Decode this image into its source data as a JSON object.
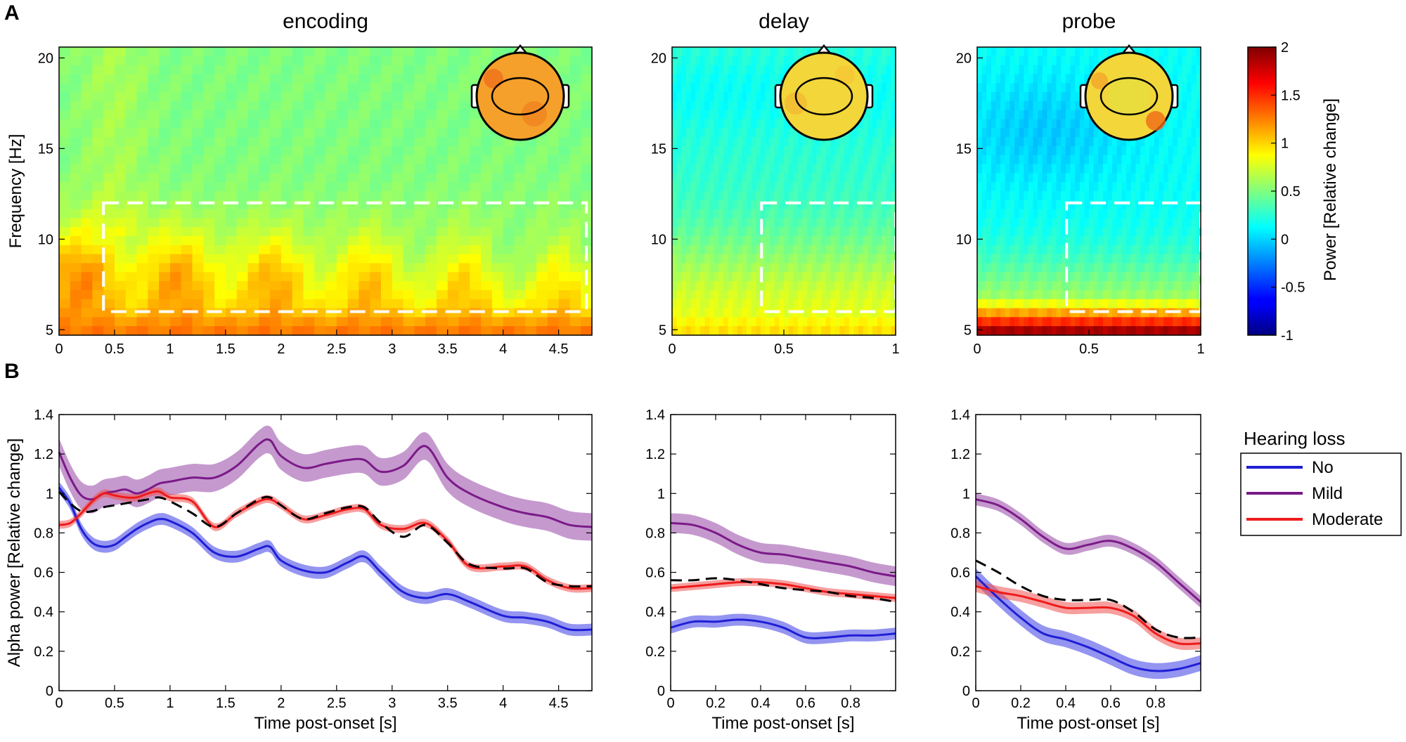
{
  "panel_labels": {
    "a": "A",
    "b": "B"
  },
  "legend": {
    "title": "Hearing loss",
    "entries": [
      {
        "label": "No",
        "color": "#1f1fd6"
      },
      {
        "label": "Mild",
        "color": "#7b1a88"
      },
      {
        "label": "Moderate",
        "color": "#ee1b1b"
      }
    ]
  },
  "colorbar": {
    "label": "Power [Relative change]",
    "ticks": [
      "2",
      "1.5",
      "1",
      "0.5",
      "0",
      "-0.5",
      "-1"
    ],
    "range": [
      -1,
      2
    ]
  },
  "chart_data": [
    {
      "type": "heatmap",
      "title": "encoding",
      "xlabel": "",
      "ylabel": "Frequency [Hz]",
      "xlim": [
        0,
        4.8
      ],
      "ylim": [
        4.7,
        20.6
      ],
      "xticks": [
        "0",
        "0.5",
        "1",
        "1.5",
        "2",
        "2.5",
        "3",
        "3.5",
        "4",
        "4.5"
      ],
      "yticks": [
        "5",
        "10",
        "15",
        "20"
      ],
      "roi": {
        "x": [
          0.4,
          4.75
        ],
        "y": [
          6,
          12
        ]
      },
      "description_values": {
        "base_low_freq": 1.3,
        "band_8hz": 1.1,
        "high_freq": 0.5
      }
    },
    {
      "type": "heatmap",
      "title": "delay",
      "xlabel": "",
      "ylabel": "",
      "xlim": [
        0,
        1
      ],
      "ylim": [
        4.7,
        20.6
      ],
      "xticks": [
        "0",
        "0.5",
        "1"
      ],
      "yticks": [
        "5",
        "10",
        "15",
        "20"
      ],
      "roi": {
        "x": [
          0.4,
          1.0
        ],
        "y": [
          6,
          12
        ]
      },
      "description_values": {
        "base_low_freq": 1.0,
        "band_8hz": 0.8,
        "high_freq": 0.25
      }
    },
    {
      "type": "heatmap",
      "title": "probe",
      "xlabel": "",
      "ylabel": "",
      "xlim": [
        0,
        1
      ],
      "ylim": [
        4.7,
        20.6
      ],
      "xticks": [
        "0",
        "0.5",
        "1"
      ],
      "yticks": [
        "5",
        "10",
        "15",
        "20"
      ],
      "roi": {
        "x": [
          0.4,
          1.0
        ],
        "y": [
          6,
          12
        ]
      },
      "description_values": {
        "base_low_freq": 2.0,
        "band_8hz": 0.6,
        "high_freq": 0.15
      }
    },
    {
      "type": "line",
      "title": "",
      "xlabel": "Time post-onset [s]",
      "ylabel": "Alpha power [Relative change]",
      "xlim": [
        0,
        4.8
      ],
      "ylim": [
        0,
        1.4
      ],
      "xticks": [
        "0",
        "0.5",
        "1",
        "1.5",
        "2",
        "2.5",
        "3",
        "3.5",
        "4",
        "4.5"
      ],
      "yticks": [
        "0",
        "0.2",
        "0.4",
        "0.6",
        "0.8",
        "1",
        "1.2",
        "1.4"
      ],
      "x": [
        0,
        0.1,
        0.2,
        0.3,
        0.4,
        0.5,
        0.6,
        0.7,
        0.8,
        0.9,
        1.0,
        1.2,
        1.4,
        1.6,
        1.8,
        1.9,
        2.0,
        2.2,
        2.4,
        2.6,
        2.75,
        2.9,
        3.1,
        3.3,
        3.5,
        3.7,
        4.0,
        4.2,
        4.4,
        4.6,
        4.8
      ],
      "series": [
        {
          "name": "No",
          "values": [
            1.03,
            0.95,
            0.82,
            0.75,
            0.73,
            0.74,
            0.78,
            0.82,
            0.85,
            0.87,
            0.86,
            0.8,
            0.7,
            0.68,
            0.72,
            0.73,
            0.66,
            0.61,
            0.6,
            0.65,
            0.68,
            0.6,
            0.5,
            0.47,
            0.49,
            0.45,
            0.38,
            0.37,
            0.35,
            0.31,
            0.31
          ],
          "ci": 0.03
        },
        {
          "name": "Mild",
          "values": [
            1.21,
            1.08,
            0.99,
            0.97,
            1.0,
            1.01,
            1.02,
            1.0,
            1.02,
            1.05,
            1.06,
            1.08,
            1.08,
            1.14,
            1.25,
            1.27,
            1.19,
            1.13,
            1.15,
            1.17,
            1.17,
            1.11,
            1.14,
            1.24,
            1.08,
            1.0,
            0.93,
            0.9,
            0.88,
            0.84,
            0.83
          ],
          "ci": 0.07
        },
        {
          "name": "Moderate",
          "values": [
            0.84,
            0.85,
            0.9,
            0.96,
            1.0,
            0.99,
            0.98,
            0.98,
            1.0,
            1.01,
            0.98,
            0.96,
            0.83,
            0.9,
            0.96,
            0.97,
            0.94,
            0.87,
            0.89,
            0.92,
            0.92,
            0.84,
            0.82,
            0.85,
            0.76,
            0.63,
            0.63,
            0.63,
            0.56,
            0.52,
            0.52
          ],
          "ci": 0.02
        },
        {
          "name": "dashed mean",
          "values": [
            1.01,
            0.95,
            0.91,
            0.91,
            0.93,
            0.94,
            0.95,
            0.96,
            0.97,
            0.98,
            0.96,
            0.9,
            0.83,
            0.9,
            0.97,
            0.98,
            0.94,
            0.87,
            0.9,
            0.93,
            0.93,
            0.85,
            0.78,
            0.84,
            0.75,
            0.64,
            0.62,
            0.62,
            0.55,
            0.53,
            0.53
          ],
          "ci": 0
        }
      ]
    },
    {
      "type": "line",
      "title": "",
      "xlabel": "Time post-onset [s]",
      "ylabel": "",
      "xlim": [
        0,
        1
      ],
      "ylim": [
        0,
        1.4
      ],
      "xticks": [
        "0",
        "0.2",
        "0.4",
        "0.6",
        "0.8"
      ],
      "yticks": [
        "0",
        "0.2",
        "0.4",
        "0.6",
        "0.8",
        "1",
        "1.2",
        "1.4"
      ],
      "x": [
        0,
        0.1,
        0.2,
        0.3,
        0.4,
        0.5,
        0.6,
        0.7,
        0.8,
        0.9,
        1.0
      ],
      "series": [
        {
          "name": "No",
          "values": [
            0.32,
            0.35,
            0.35,
            0.36,
            0.35,
            0.32,
            0.27,
            0.27,
            0.28,
            0.28,
            0.29
          ],
          "ci": 0.03
        },
        {
          "name": "Mild",
          "values": [
            0.85,
            0.84,
            0.8,
            0.74,
            0.7,
            0.69,
            0.67,
            0.65,
            0.63,
            0.6,
            0.58
          ],
          "ci": 0.05
        },
        {
          "name": "Moderate",
          "values": [
            0.52,
            0.53,
            0.54,
            0.55,
            0.55,
            0.54,
            0.52,
            0.5,
            0.49,
            0.48,
            0.47
          ],
          "ci": 0.02
        },
        {
          "name": "dashed mean",
          "values": [
            0.56,
            0.56,
            0.57,
            0.56,
            0.54,
            0.52,
            0.51,
            0.5,
            0.48,
            0.47,
            0.45
          ],
          "ci": 0
        }
      ]
    },
    {
      "type": "line",
      "title": "",
      "xlabel": "Time post-onset [s]",
      "ylabel": "",
      "xlim": [
        0,
        1
      ],
      "ylim": [
        0,
        1.4
      ],
      "xticks": [
        "0",
        "0.2",
        "0.4",
        "0.6",
        "0.8"
      ],
      "yticks": [
        "0",
        "0.2",
        "0.4",
        "0.6",
        "0.8",
        "1",
        "1.2",
        "1.4"
      ],
      "x": [
        0,
        0.1,
        0.2,
        0.3,
        0.4,
        0.5,
        0.6,
        0.7,
        0.8,
        0.9,
        1.0
      ],
      "series": [
        {
          "name": "No",
          "values": [
            0.58,
            0.47,
            0.37,
            0.29,
            0.26,
            0.22,
            0.17,
            0.12,
            0.1,
            0.11,
            0.14
          ],
          "ci": 0.04
        },
        {
          "name": "Mild",
          "values": [
            0.97,
            0.94,
            0.87,
            0.78,
            0.72,
            0.74,
            0.76,
            0.72,
            0.65,
            0.55,
            0.45
          ],
          "ci": 0.03
        },
        {
          "name": "Moderate",
          "values": [
            0.53,
            0.5,
            0.48,
            0.45,
            0.42,
            0.42,
            0.42,
            0.38,
            0.29,
            0.24,
            0.24
          ],
          "ci": 0.03
        },
        {
          "name": "dashed mean",
          "values": [
            0.66,
            0.6,
            0.53,
            0.48,
            0.46,
            0.46,
            0.46,
            0.4,
            0.31,
            0.27,
            0.27
          ],
          "ci": 0
        }
      ]
    }
  ]
}
